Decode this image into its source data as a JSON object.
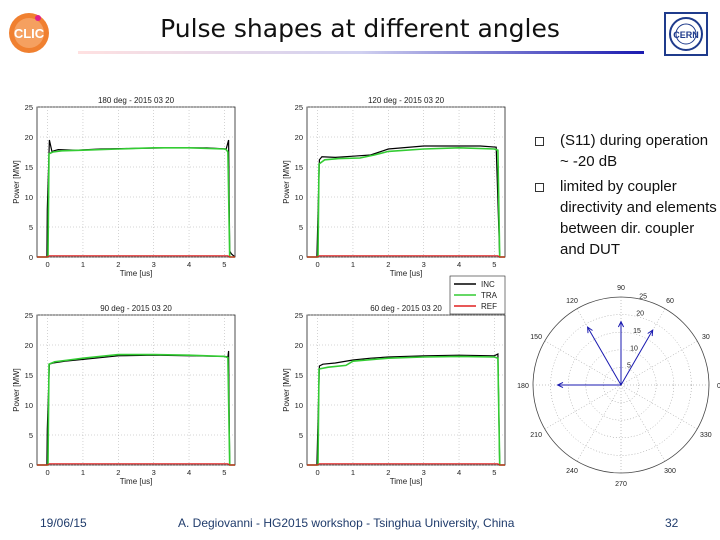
{
  "slide": {
    "title": "Pulse shapes at different angles",
    "bullets": [
      "(S11) during operation ~ -20 dB",
      "limited by coupler directivity and elements between dir. coupler and DUT"
    ],
    "footer_date": "19/06/15",
    "footer_center": "A. Degiovanni - HG2015 workshop - Tsinghua University, China",
    "page_number": "32"
  },
  "logos": {
    "left": "CLIC",
    "right": "CERN"
  },
  "colors": {
    "inc": "#000000",
    "tra": "#33cc33",
    "ref": "#e02020",
    "accent": "#1a1ab0"
  },
  "chart_data": [
    {
      "type": "line",
      "title": "180 deg - 2015 03 20",
      "xlabel": "Time [us]",
      "ylabel": "Power [MW]",
      "xlim": [
        -0.3,
        5.3
      ],
      "ylim": [
        0,
        25
      ],
      "xticks": [
        0,
        1,
        2,
        3,
        4,
        5
      ],
      "yticks": [
        0,
        5,
        10,
        15,
        20,
        25
      ],
      "grid": true,
      "series": [
        {
          "name": "INC",
          "x": [
            -0.3,
            -0.02,
            -0.01,
            0.05,
            0.12,
            0.3,
            0.8,
            1.5,
            2.5,
            3.5,
            4.5,
            5.05,
            5.12,
            5.15,
            5.2,
            5.3
          ],
          "y": [
            0,
            0,
            8,
            19.5,
            17.6,
            17.9,
            17.8,
            18.0,
            18.1,
            18.2,
            18.2,
            18.0,
            19.5,
            1.0,
            0.5,
            0
          ]
        },
        {
          "name": "TRA",
          "x": [
            -0.3,
            0.01,
            0.04,
            0.15,
            0.4,
            1.0,
            2.0,
            3.0,
            4.0,
            5.0,
            5.05,
            5.1,
            5.15,
            5.3
          ],
          "y": [
            0,
            0,
            17.2,
            17.5,
            17.7,
            17.8,
            18.0,
            18.2,
            18.2,
            18.0,
            17.9,
            17.5,
            0,
            0
          ]
        },
        {
          "name": "REF",
          "x": [
            -0.3,
            0,
            0.05,
            5.1,
            5.15,
            5.3
          ],
          "y": [
            0,
            0,
            0.2,
            0.2,
            0,
            0
          ]
        }
      ]
    },
    {
      "type": "line",
      "title": "120 deg - 2015 03 20",
      "xlabel": "Time [us]",
      "ylabel": "Power [MW]",
      "xlim": [
        -0.3,
        5.3
      ],
      "ylim": [
        0,
        25
      ],
      "xticks": [
        0,
        1,
        2,
        3,
        4,
        5
      ],
      "yticks": [
        0,
        5,
        10,
        15,
        20,
        25
      ],
      "grid": true,
      "series": [
        {
          "name": "INC",
          "x": [
            -0.3,
            -0.02,
            0.05,
            0.12,
            0.5,
            1.0,
            1.5,
            2.0,
            3.0,
            4.0,
            4.6,
            5.05,
            5.15,
            5.3
          ],
          "y": [
            0,
            0,
            16.2,
            16.7,
            16.6,
            16.8,
            17.0,
            18.0,
            18.5,
            18.5,
            18.5,
            18.3,
            0,
            0
          ]
        },
        {
          "name": "TRA",
          "x": [
            -0.3,
            0.01,
            0.04,
            0.2,
            0.6,
            1.2,
            1.6,
            2.0,
            3.0,
            4.0,
            5.0,
            5.1,
            5.15,
            5.3
          ],
          "y": [
            0,
            0,
            15.5,
            16.2,
            16.4,
            16.5,
            17.0,
            17.6,
            18.0,
            18.2,
            18.0,
            17.8,
            0,
            0
          ]
        },
        {
          "name": "REF",
          "x": [
            -0.3,
            0,
            0.05,
            5.1,
            5.15,
            5.3
          ],
          "y": [
            0,
            0,
            0.2,
            0.2,
            0,
            0
          ]
        }
      ]
    },
    {
      "type": "line",
      "title": "90 deg - 2015 03 20",
      "xlabel": "Time [us]",
      "ylabel": "Power [MW]",
      "xlim": [
        -0.3,
        5.3
      ],
      "ylim": [
        0,
        25
      ],
      "xticks": [
        0,
        1,
        2,
        3,
        4,
        5
      ],
      "yticks": [
        0,
        5,
        10,
        15,
        20,
        25
      ],
      "grid": true,
      "series": [
        {
          "name": "INC",
          "x": [
            -0.3,
            -0.02,
            -0.01,
            0.05,
            0.15,
            0.5,
            1.0,
            2.0,
            3.0,
            4.0,
            5.0,
            5.1,
            5.12,
            5.15,
            5.3
          ],
          "y": [
            0,
            0,
            6,
            16.8,
            17.0,
            17.3,
            17.6,
            18.2,
            18.3,
            18.2,
            18.1,
            18.0,
            19.0,
            0,
            0
          ]
        },
        {
          "name": "TRA",
          "x": [
            -0.3,
            0.01,
            0.04,
            0.2,
            0.6,
            1.0,
            2.0,
            3.0,
            4.0,
            5.0,
            5.1,
            5.15,
            5.3
          ],
          "y": [
            0,
            0,
            16.8,
            17.2,
            17.5,
            17.8,
            18.4,
            18.4,
            18.3,
            18.1,
            17.9,
            0,
            0
          ]
        },
        {
          "name": "REF",
          "x": [
            -0.3,
            0,
            0.05,
            5.1,
            5.15,
            5.3
          ],
          "y": [
            0,
            0,
            0.2,
            0.2,
            0,
            0
          ]
        }
      ]
    },
    {
      "type": "line",
      "title": "60 deg - 2015 03 20",
      "xlabel": "Time [us]",
      "ylabel": "Power [MW]",
      "xlim": [
        -0.3,
        5.3
      ],
      "ylim": [
        0,
        25
      ],
      "xticks": [
        0,
        1,
        2,
        3,
        4,
        5
      ],
      "yticks": [
        0,
        5,
        10,
        15,
        20,
        25
      ],
      "grid": true,
      "series": [
        {
          "name": "INC",
          "x": [
            -0.3,
            -0.02,
            0.05,
            0.15,
            0.5,
            1.0,
            1.5,
            2.0,
            3.0,
            4.0,
            5.0,
            5.1,
            5.15,
            5.3
          ],
          "y": [
            0,
            0,
            16.5,
            16.8,
            17.0,
            17.5,
            17.8,
            18.0,
            18.2,
            18.3,
            18.2,
            18.5,
            0,
            0
          ]
        },
        {
          "name": "TRA",
          "x": [
            -0.3,
            0.01,
            0.04,
            0.3,
            0.8,
            1.0,
            2.0,
            3.0,
            4.0,
            5.0,
            5.1,
            5.15,
            5.3
          ],
          "y": [
            0,
            0,
            16.0,
            16.3,
            16.6,
            17.3,
            17.8,
            18.0,
            18.1,
            18.0,
            17.8,
            0,
            0
          ]
        },
        {
          "name": "REF",
          "x": [
            -0.3,
            0,
            0.05,
            5.1,
            5.15,
            5.3
          ],
          "y": [
            0,
            0,
            0.2,
            0.2,
            0,
            0
          ]
        }
      ]
    },
    {
      "type": "polar",
      "rticks": [
        5,
        10,
        15,
        20,
        25
      ],
      "rmax": 25,
      "angle_ticks": [
        0,
        30,
        60,
        90,
        120,
        150,
        180,
        210,
        240,
        270,
        300,
        330
      ],
      "series": [
        {
          "angle": [
            180,
            120,
            90,
            60
          ],
          "r": [
            18,
            19,
            18,
            18
          ]
        }
      ]
    }
  ],
  "legend": [
    "INC",
    "TRA",
    "REF"
  ]
}
